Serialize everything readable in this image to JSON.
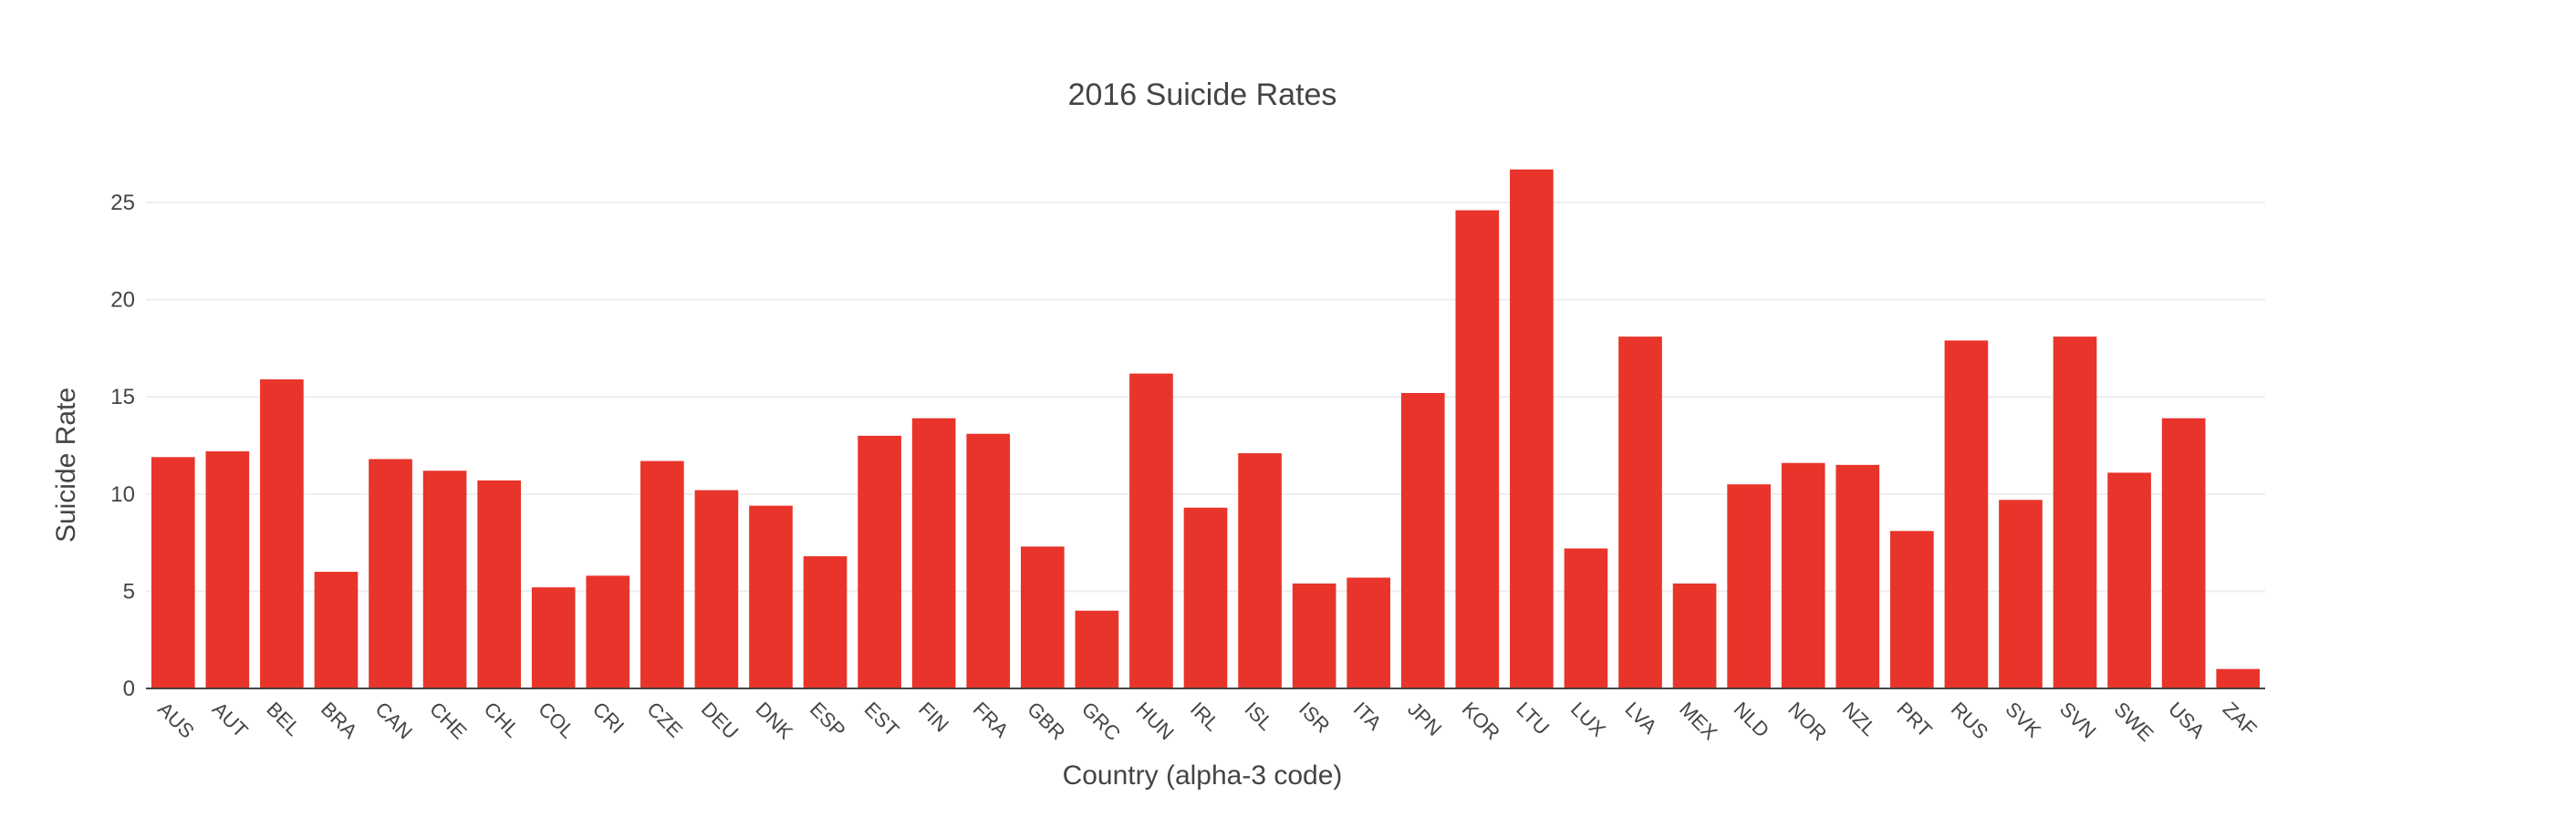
{
  "chart_data": {
    "type": "bar",
    "title": "2016 Suicide Rates",
    "xlabel": "Country (alpha-3 code)",
    "ylabel": "Suicide Rate",
    "categories": [
      "AUS",
      "AUT",
      "BEL",
      "BRA",
      "CAN",
      "CHE",
      "CHL",
      "COL",
      "CRI",
      "CZE",
      "DEU",
      "DNK",
      "ESP",
      "EST",
      "FIN",
      "FRA",
      "GBR",
      "GRC",
      "HUN",
      "IRL",
      "ISL",
      "ISR",
      "ITA",
      "JPN",
      "KOR",
      "LTU",
      "LUX",
      "LVA",
      "MEX",
      "NLD",
      "NOR",
      "NZL",
      "PRT",
      "RUS",
      "SVK",
      "SVN",
      "SWE",
      "USA",
      "ZAF"
    ],
    "values": [
      11.9,
      12.2,
      15.9,
      6.0,
      11.8,
      11.2,
      10.7,
      5.2,
      5.8,
      11.7,
      10.2,
      9.4,
      6.8,
      13.0,
      13.9,
      13.1,
      7.3,
      4.0,
      16.2,
      9.3,
      12.1,
      5.4,
      5.7,
      15.2,
      24.6,
      26.7,
      7.2,
      18.1,
      5.4,
      10.5,
      11.6,
      11.5,
      8.1,
      17.9,
      9.7,
      18.1,
      11.1,
      13.9,
      1.0
    ],
    "yticks": [
      0,
      5,
      10,
      15,
      20,
      25
    ],
    "ylim": [
      0,
      28.1
    ],
    "grid": true,
    "legend": "none",
    "bar_color": "#e8342a",
    "grid_color": "#eeeeee",
    "axis_color": "#444444"
  }
}
